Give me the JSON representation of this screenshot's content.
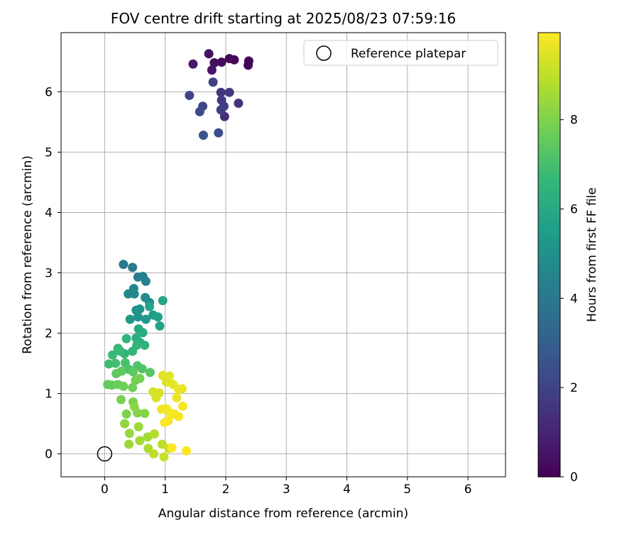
{
  "chart_data": {
    "type": "scatter",
    "title": "FOV centre drift starting at 2025/08/23 07:59:16",
    "xlabel": "Angular distance from reference (arcmin)",
    "ylabel": "Rotation from reference (arcmin)",
    "xlim": [
      -0.72,
      6.62
    ],
    "ylim": [
      -0.38,
      6.98
    ],
    "xticks": [
      0,
      1,
      2,
      3,
      4,
      5,
      6
    ],
    "yticks": [
      0,
      1,
      2,
      3,
      4,
      5,
      6
    ],
    "grid": true,
    "legend": {
      "placement": "top-right",
      "entries": [
        "Reference platepar"
      ]
    },
    "reference_point": {
      "x": 0,
      "y": 0,
      "label": "Reference platepar"
    },
    "colorbar": {
      "label": "Hours from first FF file",
      "colormap": "viridis",
      "range": [
        0,
        9.95
      ],
      "ticks": [
        0,
        2,
        4,
        6,
        8
      ]
    },
    "series": [
      {
        "points": [
          [
            2.38,
            6.51,
            0.05
          ],
          [
            2.37,
            6.44,
            0.12
          ],
          [
            2.14,
            6.53,
            0.18
          ],
          [
            2.06,
            6.55,
            0.25
          ],
          [
            1.93,
            6.49,
            0.32
          ],
          [
            1.81,
            6.48,
            0.4
          ],
          [
            1.72,
            6.63,
            0.48
          ],
          [
            1.77,
            6.36,
            0.56
          ],
          [
            1.46,
            6.46,
            0.7
          ],
          [
            1.98,
            5.59,
            1.25
          ],
          [
            2.21,
            5.81,
            1.4
          ],
          [
            1.92,
            5.99,
            1.52
          ],
          [
            2.06,
            5.99,
            1.6
          ],
          [
            1.93,
            5.86,
            1.68
          ],
          [
            1.97,
            5.76,
            1.76
          ],
          [
            1.92,
            5.7,
            1.84
          ],
          [
            1.79,
            6.16,
            1.92
          ],
          [
            1.4,
            5.94,
            2.0
          ],
          [
            1.62,
            5.76,
            2.1
          ],
          [
            1.57,
            5.67,
            2.2
          ],
          [
            1.88,
            5.32,
            2.4
          ],
          [
            1.63,
            5.28,
            2.55
          ],
          [
            0.31,
            3.14,
            4.0
          ],
          [
            0.46,
            3.09,
            4.1
          ],
          [
            0.55,
            2.93,
            4.2
          ],
          [
            0.63,
            2.94,
            4.3
          ],
          [
            0.68,
            2.86,
            4.4
          ],
          [
            0.48,
            2.74,
            4.5
          ],
          [
            0.39,
            2.65,
            4.6
          ],
          [
            0.49,
            2.65,
            4.7
          ],
          [
            0.67,
            2.59,
            4.8
          ],
          [
            0.74,
            2.51,
            4.9
          ],
          [
            0.52,
            2.38,
            5.0
          ],
          [
            0.58,
            2.4,
            5.1
          ],
          [
            0.55,
            2.27,
            5.2
          ],
          [
            0.42,
            2.23,
            5.3
          ],
          [
            0.68,
            2.23,
            5.4
          ],
          [
            0.8,
            2.3,
            5.5
          ],
          [
            0.88,
            2.27,
            5.6
          ],
          [
            0.91,
            2.12,
            5.7
          ],
          [
            0.74,
            2.44,
            5.8
          ],
          [
            0.96,
            2.54,
            5.9
          ],
          [
            0.56,
            2.07,
            6.0
          ],
          [
            0.63,
            2.01,
            6.1
          ],
          [
            0.52,
            1.92,
            6.2
          ],
          [
            0.58,
            1.85,
            6.3
          ],
          [
            0.66,
            1.8,
            6.4
          ],
          [
            0.36,
            1.91,
            6.45
          ],
          [
            0.46,
            1.7,
            6.5
          ],
          [
            0.53,
            1.8,
            6.55
          ],
          [
            0.33,
            1.66,
            6.6
          ],
          [
            0.26,
            1.7,
            6.62
          ],
          [
            0.22,
            1.75,
            6.7
          ],
          [
            0.13,
            1.64,
            6.75
          ],
          [
            0.07,
            1.49,
            6.8
          ],
          [
            0.18,
            1.5,
            6.9
          ],
          [
            0.34,
            1.51,
            7.0
          ],
          [
            0.4,
            1.4,
            7.1
          ],
          [
            0.54,
            1.46,
            7.15
          ],
          [
            0.62,
            1.41,
            7.2
          ],
          [
            0.75,
            1.35,
            7.3
          ],
          [
            0.47,
            1.36,
            7.4
          ],
          [
            0.28,
            1.37,
            7.45
          ],
          [
            0.19,
            1.33,
            7.5
          ],
          [
            0.12,
            1.14,
            7.55
          ],
          [
            0.05,
            1.15,
            7.6
          ],
          [
            0.22,
            1.15,
            7.65
          ],
          [
            0.31,
            1.12,
            7.7
          ],
          [
            0.46,
            1.1,
            7.75
          ],
          [
            0.51,
            1.22,
            7.8
          ],
          [
            0.58,
            1.25,
            7.85
          ],
          [
            0.27,
            0.9,
            7.9
          ],
          [
            0.47,
            0.86,
            7.95
          ],
          [
            0.36,
            0.66,
            8.0
          ],
          [
            0.54,
            0.68,
            8.05
          ],
          [
            0.66,
            0.67,
            8.1
          ],
          [
            0.49,
            0.78,
            8.2
          ],
          [
            0.33,
            0.5,
            8.3
          ],
          [
            0.41,
            0.34,
            8.4
          ],
          [
            0.4,
            0.16,
            8.45
          ],
          [
            0.56,
            0.45,
            8.5
          ],
          [
            0.71,
            0.28,
            8.55
          ],
          [
            0.58,
            0.22,
            8.6
          ],
          [
            0.72,
            0.09,
            8.7
          ],
          [
            0.82,
            0.33,
            8.8
          ],
          [
            0.95,
            0.16,
            8.9
          ],
          [
            0.81,
            0.0,
            9.0
          ],
          [
            0.98,
            -0.05,
            9.1
          ],
          [
            1.06,
            0.09,
            9.2
          ],
          [
            0.8,
            1.03,
            9.3
          ],
          [
            0.9,
            1.01,
            9.35
          ],
          [
            0.85,
            0.93,
            9.4
          ],
          [
            0.96,
            1.3,
            9.45
          ],
          [
            1.02,
            1.19,
            9.5
          ],
          [
            1.07,
            1.29,
            9.55
          ],
          [
            1.13,
            1.15,
            9.6
          ],
          [
            1.22,
            1.07,
            9.65
          ],
          [
            1.28,
            1.08,
            9.7
          ],
          [
            1.19,
            0.93,
            9.72
          ],
          [
            0.94,
            0.74,
            9.75
          ],
          [
            1.02,
            0.75,
            9.78
          ],
          [
            1.08,
            0.68,
            9.8
          ],
          [
            1.15,
            0.66,
            9.82
          ],
          [
            1.22,
            0.62,
            9.84
          ],
          [
            1.29,
            0.79,
            9.86
          ],
          [
            1.05,
            0.55,
            9.88
          ],
          [
            0.99,
            0.52,
            9.9
          ],
          [
            1.35,
            0.05,
            9.92
          ],
          [
            1.11,
            0.1,
            9.94
          ]
        ]
      }
    ]
  }
}
